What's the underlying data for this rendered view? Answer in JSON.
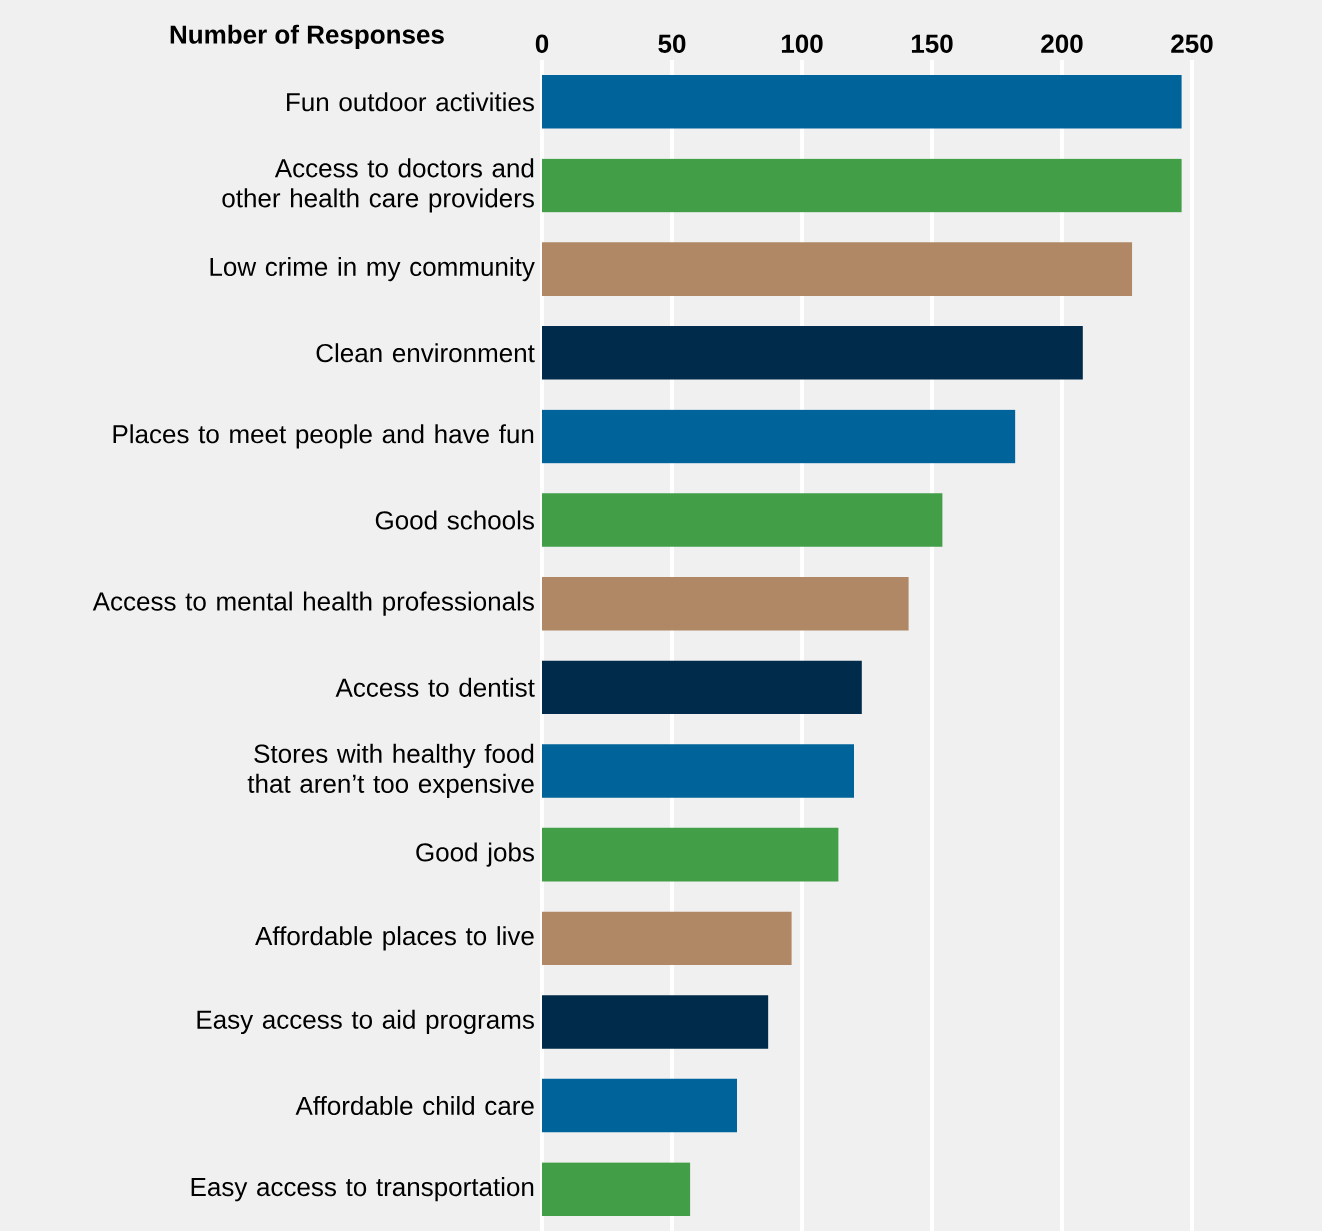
{
  "chart_data": {
    "type": "bar",
    "orientation": "horizontal",
    "xlabel": "Number of Responses",
    "categories": [
      "Fun outdoor activities",
      "Access to doctors and other health care providers",
      "Low crime in my community",
      "Clean environment",
      "Places to meet people and have fun",
      "Good schools",
      "Access to mental health professionals",
      "Access to dentist",
      "Stores with healthy food that aren’t too expensive",
      "Good jobs",
      "Affordable places to live",
      "Easy access to aid programs",
      "Affordable child care",
      "Easy access to transportation"
    ],
    "values": [
      246,
      246,
      227,
      208,
      182,
      154,
      141,
      123,
      120,
      114,
      96,
      87,
      75,
      57
    ],
    "colors": [
      "#00649a",
      "#429e47",
      "#b08865",
      "#002b4a",
      "#00649a",
      "#429e47",
      "#b08865",
      "#002b4a",
      "#00649a",
      "#429e47",
      "#b08865",
      "#002b4a",
      "#00649a",
      "#429e47"
    ],
    "xlim": [
      0,
      300
    ],
    "xticks": [
      0,
      50,
      100,
      150,
      200,
      250
    ],
    "grid": "x"
  }
}
